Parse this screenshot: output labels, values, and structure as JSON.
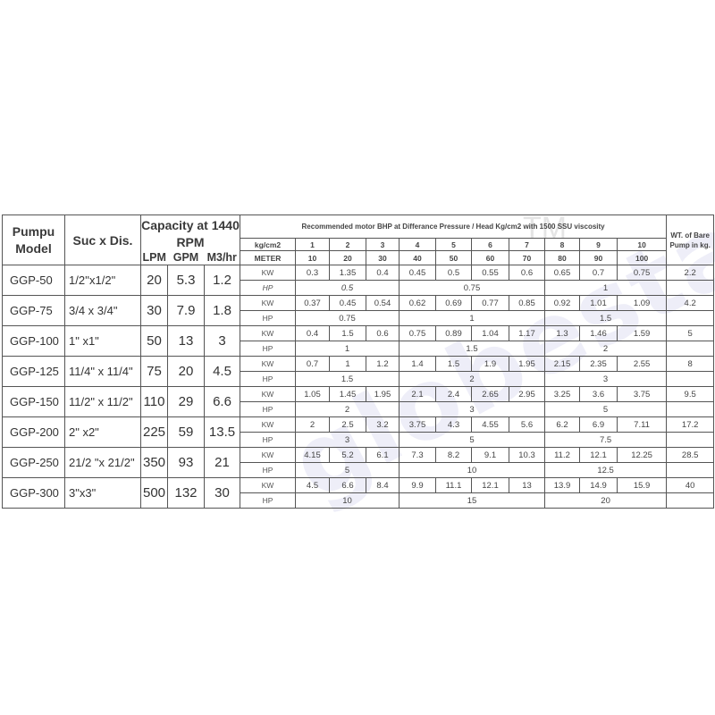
{
  "header": {
    "model": "Pumpu Model",
    "suc_dis": "Suc x Dis.",
    "capacity": "Capacity at 1440 RPM",
    "capacity_units": [
      "LPM",
      "GPM",
      "M3/hr"
    ],
    "bhp_title": "Recommended motor BHP at Differance Pressure / Head Kg/cm2 with 1500 SSU viscosity",
    "pressure_label": "kg/cm2",
    "pressures": [
      "1",
      "2",
      "3",
      "4",
      "5",
      "6",
      "7",
      "8",
      "9",
      "10"
    ],
    "meter_label": "METER",
    "meters": [
      "10",
      "20",
      "30",
      "40",
      "50",
      "60",
      "70",
      "80",
      "90",
      "100"
    ],
    "weight": "WT. of Bare Pump in kg.",
    "kw_label": "KW",
    "hp_label": "HP"
  },
  "watermark": "globestar",
  "watermark_tm": "TM",
  "models": [
    {
      "model": "GGP-50",
      "suc": "1/2''x1/2\"",
      "lpm": "20",
      "gpm": "5.3",
      "m3": "1.2",
      "kw": [
        "0.3",
        "1.35",
        "0.4",
        "0.45",
        "0.5",
        "0.55",
        "0.6",
        "0.65",
        "0.7",
        "0.75"
      ],
      "hp": [
        "0.5",
        "0.75",
        "1"
      ],
      "wt": "2.2"
    },
    {
      "model": "GGP-75",
      "suc": "3/4 x 3/4\"",
      "lpm": "30",
      "gpm": "7.9",
      "m3": "1.8",
      "kw": [
        "0.37",
        "0.45",
        "0.54",
        "0.62",
        "0.69",
        "0.77",
        "0.85",
        "0.92",
        "1.01",
        "1.09"
      ],
      "hp": [
        "0.75",
        "1",
        "1.5"
      ],
      "wt": "4.2"
    },
    {
      "model": "GGP-100",
      "suc": "1\" x1\"",
      "lpm": "50",
      "gpm": "13",
      "m3": "3",
      "kw": [
        "0.4",
        "1.5",
        "0.6",
        "0.75",
        "0.89",
        "1.04",
        "1.17",
        "1.3",
        "1.46",
        "1.59"
      ],
      "hp": [
        "1",
        "1.5",
        "2"
      ],
      "wt": "5"
    },
    {
      "model": "GGP-125",
      "suc": "11/4\" x 11/4\"",
      "lpm": "75",
      "gpm": "20",
      "m3": "4.5",
      "kw": [
        "0.7",
        "1",
        "1.2",
        "1.4",
        "1.5",
        "1.9",
        "1.95",
        "2.15",
        "2.35",
        "2.55"
      ],
      "hp": [
        "1.5",
        "2",
        "3"
      ],
      "wt": "8"
    },
    {
      "model": "GGP-150",
      "suc": "11/2\" x 11/2\"",
      "lpm": "110",
      "gpm": "29",
      "m3": "6.6",
      "kw": [
        "1.05",
        "1.45",
        "1.95",
        "2.1",
        "2.4",
        "2.65",
        "2.95",
        "3.25",
        "3.6",
        "3.75"
      ],
      "hp": [
        "2",
        "3",
        "5"
      ],
      "wt": "9.5"
    },
    {
      "model": "GGP-200",
      "suc": "2\" x2\"",
      "lpm": "225",
      "gpm": "59",
      "m3": "13.5",
      "kw": [
        "2",
        "2.5",
        "3.2",
        "3.75",
        "4.3",
        "4.55",
        "5.6",
        "6.2",
        "6.9",
        "7.11"
      ],
      "hp": [
        "3",
        "5",
        "7.5"
      ],
      "wt": "17.2"
    },
    {
      "model": "GGP-250",
      "suc": "21/2 \"x 21/2\"",
      "lpm": "350",
      "gpm": "93",
      "m3": "21",
      "kw": [
        "4.15",
        "5.2",
        "6.1",
        "7.3",
        "8.2",
        "9.1",
        "10.3",
        "11.2",
        "12.1",
        "12.25"
      ],
      "hp": [
        "5",
        "10",
        "12.5"
      ],
      "wt": "28.5"
    },
    {
      "model": "GGP-300",
      "suc": "3\"x3\"",
      "lpm": "500",
      "gpm": "132",
      "m3": "30",
      "kw": [
        "4.5",
        "6.6",
        "8.4",
        "9.9",
        "11.1",
        "12.1",
        "13",
        "13.9",
        "14.9",
        "15.9"
      ],
      "hp": [
        "10",
        "15",
        "20"
      ],
      "wt": "40"
    }
  ]
}
